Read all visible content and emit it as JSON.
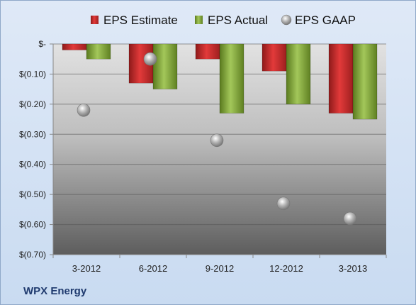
{
  "chart_data": {
    "type": "bar",
    "title": "",
    "xlabel": "",
    "ylabel": "",
    "categories": [
      "3-2012",
      "6-2012",
      "9-2012",
      "12-2012",
      "3-2013"
    ],
    "series": [
      {
        "name": "EPS Estimate",
        "kind": "bar",
        "color": "#c0282a",
        "values": [
          -0.02,
          -0.13,
          -0.05,
          -0.09,
          -0.23
        ]
      },
      {
        "name": "EPS Actual",
        "kind": "bar",
        "color": "#7a9e2e",
        "values": [
          -0.05,
          -0.15,
          -0.23,
          -0.2,
          -0.25
        ]
      },
      {
        "name": "EPS GAAP",
        "kind": "scatter",
        "color": "#9a9a9a",
        "values": [
          -0.22,
          -0.05,
          -0.32,
          -0.53,
          -0.58
        ]
      }
    ],
    "ylim": [
      -0.7,
      0
    ],
    "yticks": [
      0,
      -0.1,
      -0.2,
      -0.3,
      -0.4,
      -0.5,
      -0.6,
      -0.7
    ],
    "ytick_labels": [
      "$-",
      "$(0.10)",
      "$(0.20)",
      "$(0.30)",
      "$(0.40)",
      "$(0.50)",
      "$(0.60)",
      "$(0.70)"
    ],
    "grid": true,
    "legend_position": "top"
  },
  "footer": {
    "company": "WPX Energy"
  }
}
